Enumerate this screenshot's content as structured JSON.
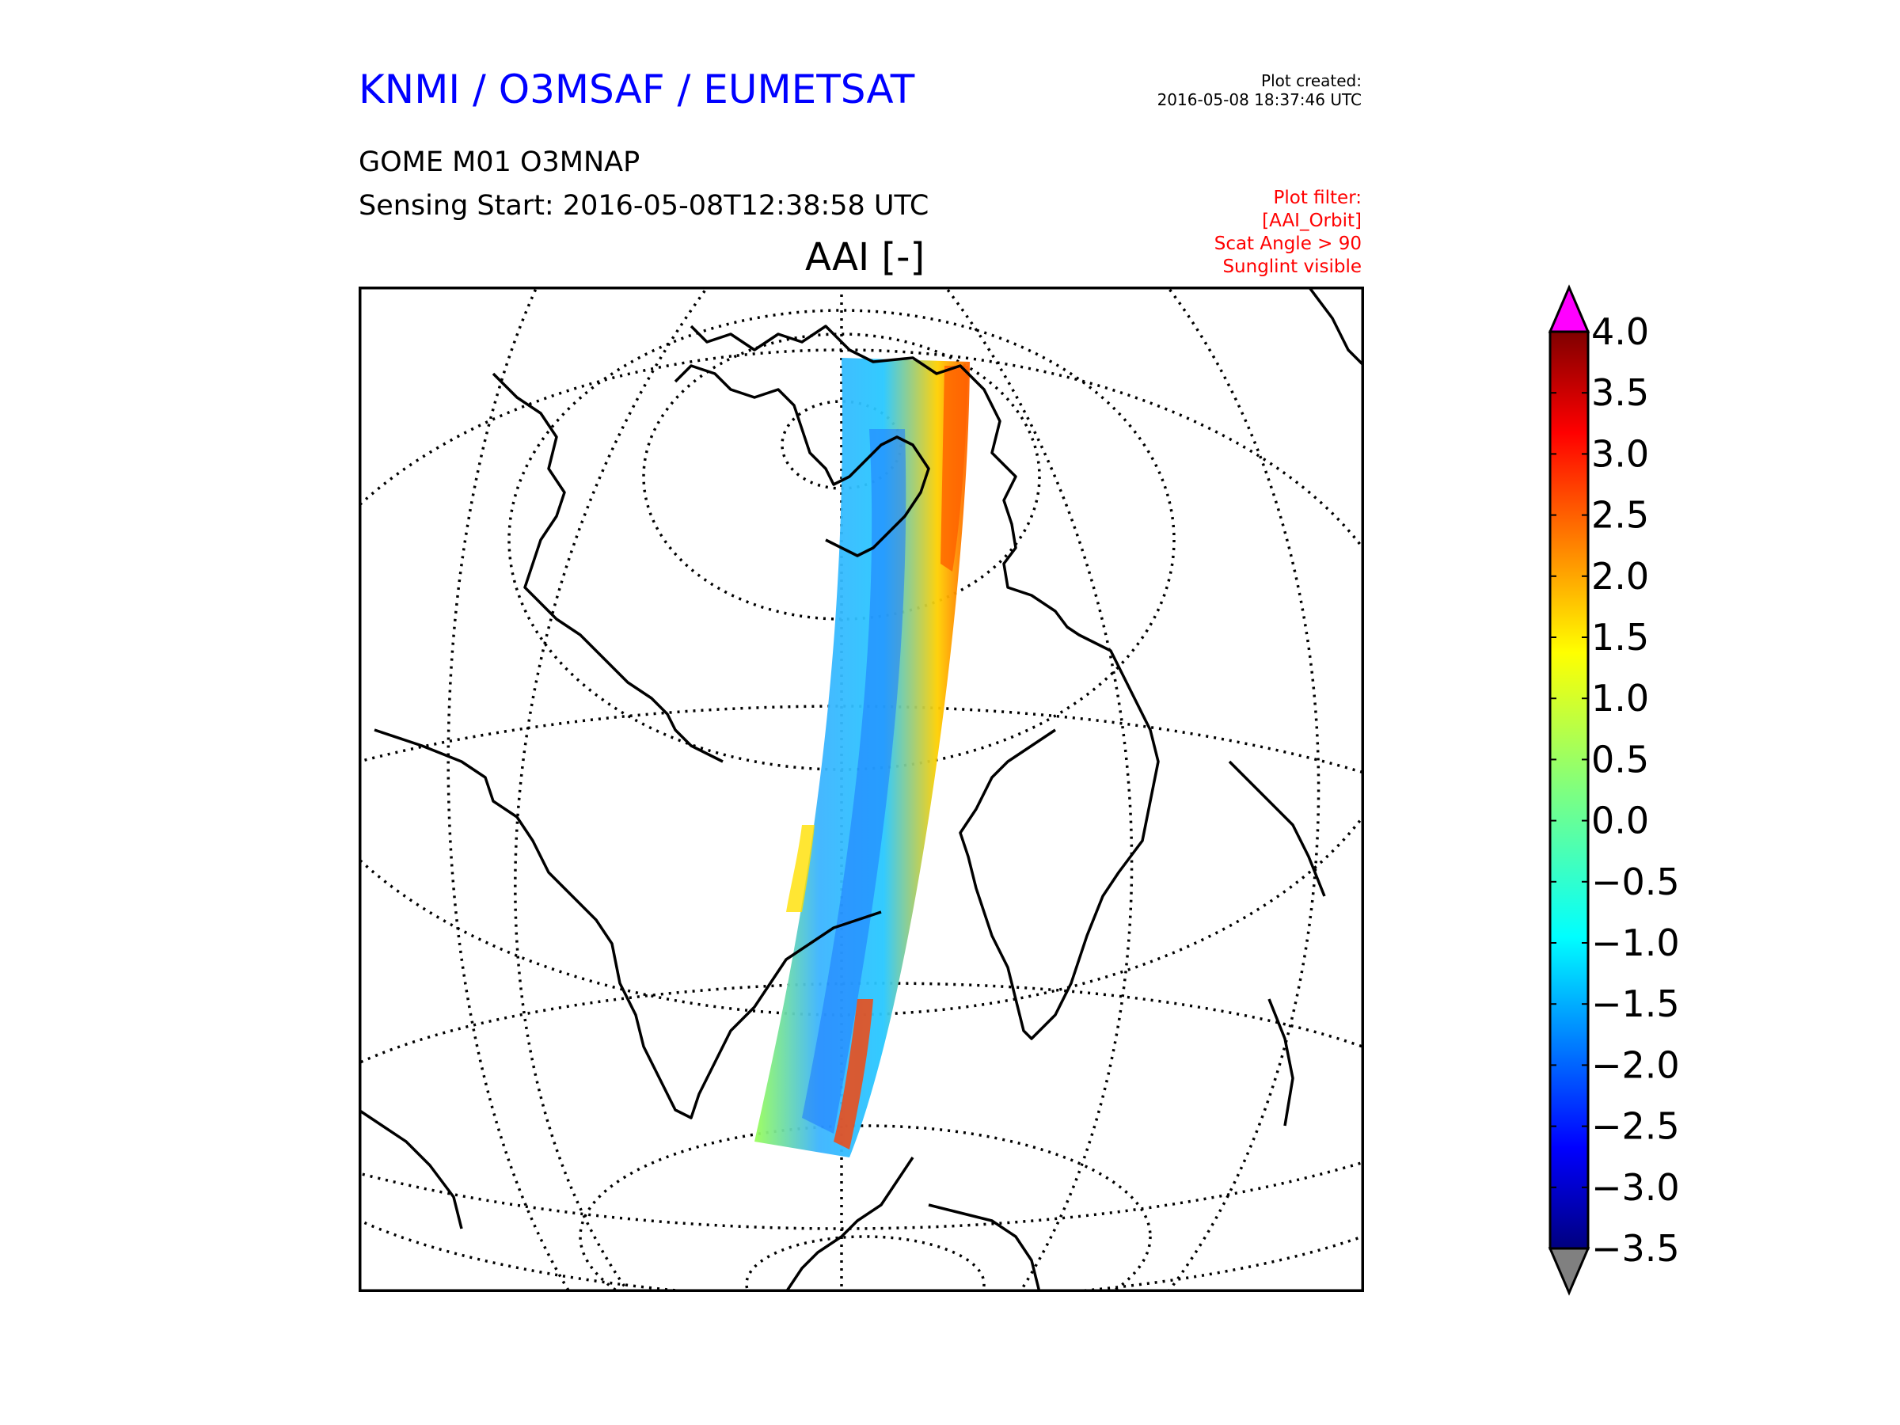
{
  "header": {
    "org_title": "KNMI / O3MSAF / EUMETSAT",
    "product": "GOME M01 O3MNAP",
    "sensing_start": "Sensing Start: 2016-05-08T12:38:58 UTC",
    "plot_title": "AAI [-]",
    "created_label": "Plot created:",
    "created_time": "2016-05-08 18:37:46 UTC",
    "filter_lines": [
      "Plot filter:",
      "[AAI_Orbit]",
      "Scat Angle > 90",
      "Sunglint visible"
    ]
  },
  "colors": {
    "title": "#0000ff",
    "filter": "#ff0000",
    "over_extend": "#ff00ff",
    "under_extend": "#808080"
  },
  "colorbar": {
    "colormap": "jet",
    "min": -3.5,
    "max": 4.0,
    "ticks": [
      "4.0",
      "3.5",
      "3.0",
      "2.5",
      "2.0",
      "1.5",
      "1.0",
      "0.5",
      "0.0",
      "−0.5",
      "−1.0",
      "−1.5",
      "−2.0",
      "−2.5",
      "−3.0",
      "−3.5"
    ],
    "extend": "both"
  },
  "map": {
    "projection": "orthographic",
    "graticule": "dotted",
    "variable": "AAI",
    "swath_colors": [
      "#3cb4ff",
      "#1e78ff",
      "#28c8ff",
      "#9bff5a",
      "#ffe000",
      "#ff6000"
    ]
  }
}
